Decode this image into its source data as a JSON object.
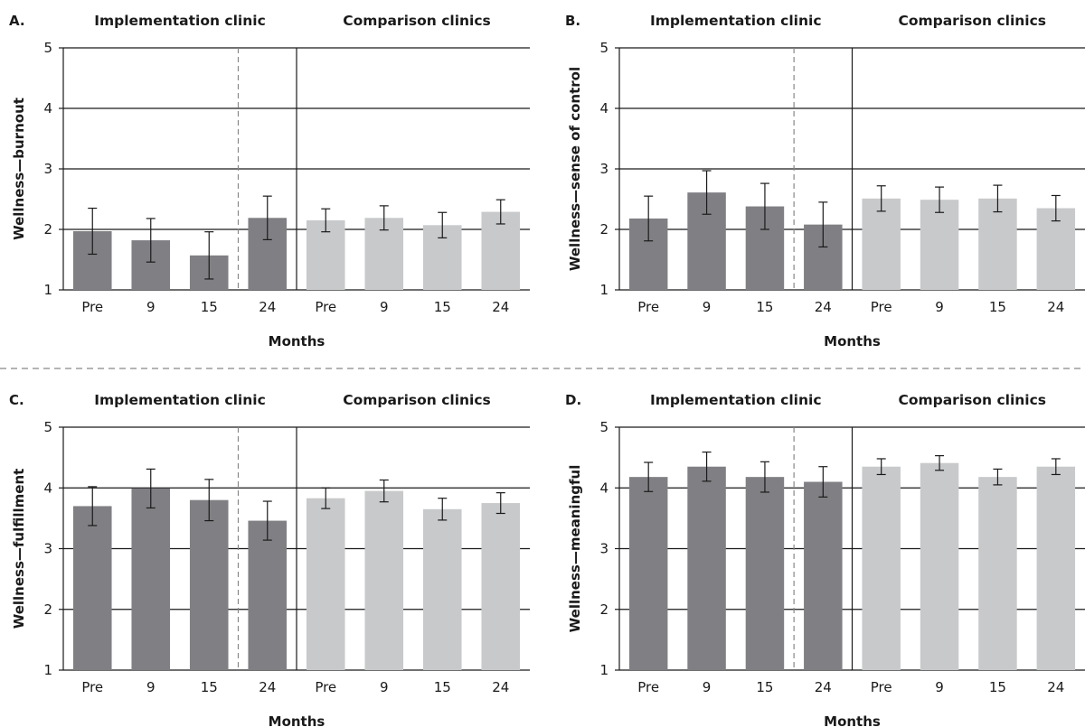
{
  "chart_data": [
    {
      "type": "bar",
      "panel": "A.",
      "groups": [
        "Implementation clinic",
        "Comparison clinics"
      ],
      "categories": [
        "Pre",
        "9",
        "15",
        "24",
        "Pre",
        "9",
        "15",
        "24"
      ],
      "values": [
        1.97,
        1.82,
        1.57,
        2.19,
        2.15,
        2.19,
        2.07,
        2.29
      ],
      "errors": [
        0.38,
        0.36,
        0.39,
        0.36,
        0.19,
        0.2,
        0.21,
        0.2
      ],
      "ylabel": "Wellness—burnout",
      "xlabel": "Months",
      "ylim": [
        1,
        5
      ],
      "yticks": [
        1,
        2,
        3,
        4,
        5
      ]
    },
    {
      "type": "bar",
      "panel": "B.",
      "groups": [
        "Implementation clinic",
        "Comparison clinics"
      ],
      "categories": [
        "Pre",
        "9",
        "15",
        "24",
        "Pre",
        "9",
        "15",
        "24"
      ],
      "values": [
        2.18,
        2.61,
        2.38,
        2.08,
        2.51,
        2.49,
        2.51,
        2.35
      ],
      "errors": [
        0.37,
        0.36,
        0.38,
        0.37,
        0.21,
        0.21,
        0.22,
        0.21
      ],
      "ylabel": "Wellness—sense of control",
      "xlabel": "Months",
      "ylim": [
        1,
        5
      ],
      "yticks": [
        1,
        2,
        3,
        4,
        5
      ]
    },
    {
      "type": "bar",
      "panel": "C.",
      "groups": [
        "Implementation clinic",
        "Comparison clinics"
      ],
      "categories": [
        "Pre",
        "9",
        "15",
        "24",
        "Pre",
        "9",
        "15",
        "24"
      ],
      "values": [
        3.7,
        3.99,
        3.8,
        3.46,
        3.83,
        3.95,
        3.65,
        3.75
      ],
      "errors": [
        0.32,
        0.32,
        0.34,
        0.32,
        0.17,
        0.18,
        0.18,
        0.17
      ],
      "ylabel": "Wellness—fulfillment",
      "xlabel": "Months",
      "ylim": [
        1,
        5
      ],
      "yticks": [
        1,
        2,
        3,
        4,
        5
      ]
    },
    {
      "type": "bar",
      "panel": "D.",
      "groups": [
        "Implementation clinic",
        "Comparison clinics"
      ],
      "categories": [
        "Pre",
        "9",
        "15",
        "24",
        "Pre",
        "9",
        "15",
        "24"
      ],
      "values": [
        4.18,
        4.35,
        4.18,
        4.1,
        4.35,
        4.41,
        4.18,
        4.35
      ],
      "errors": [
        0.24,
        0.24,
        0.25,
        0.25,
        0.13,
        0.12,
        0.13,
        0.13
      ],
      "ylabel": "Wellness—meaningful",
      "xlabel": "Months",
      "ylim": [
        1,
        5
      ],
      "yticks": [
        1,
        2,
        3,
        4,
        5
      ]
    }
  ],
  "colors": {
    "implementation": "#808084",
    "comparison": "#c8c9cb",
    "gridline": "#1a1a1a",
    "error_bar": "#1a1a1a",
    "dashed_separator": "#888888"
  }
}
